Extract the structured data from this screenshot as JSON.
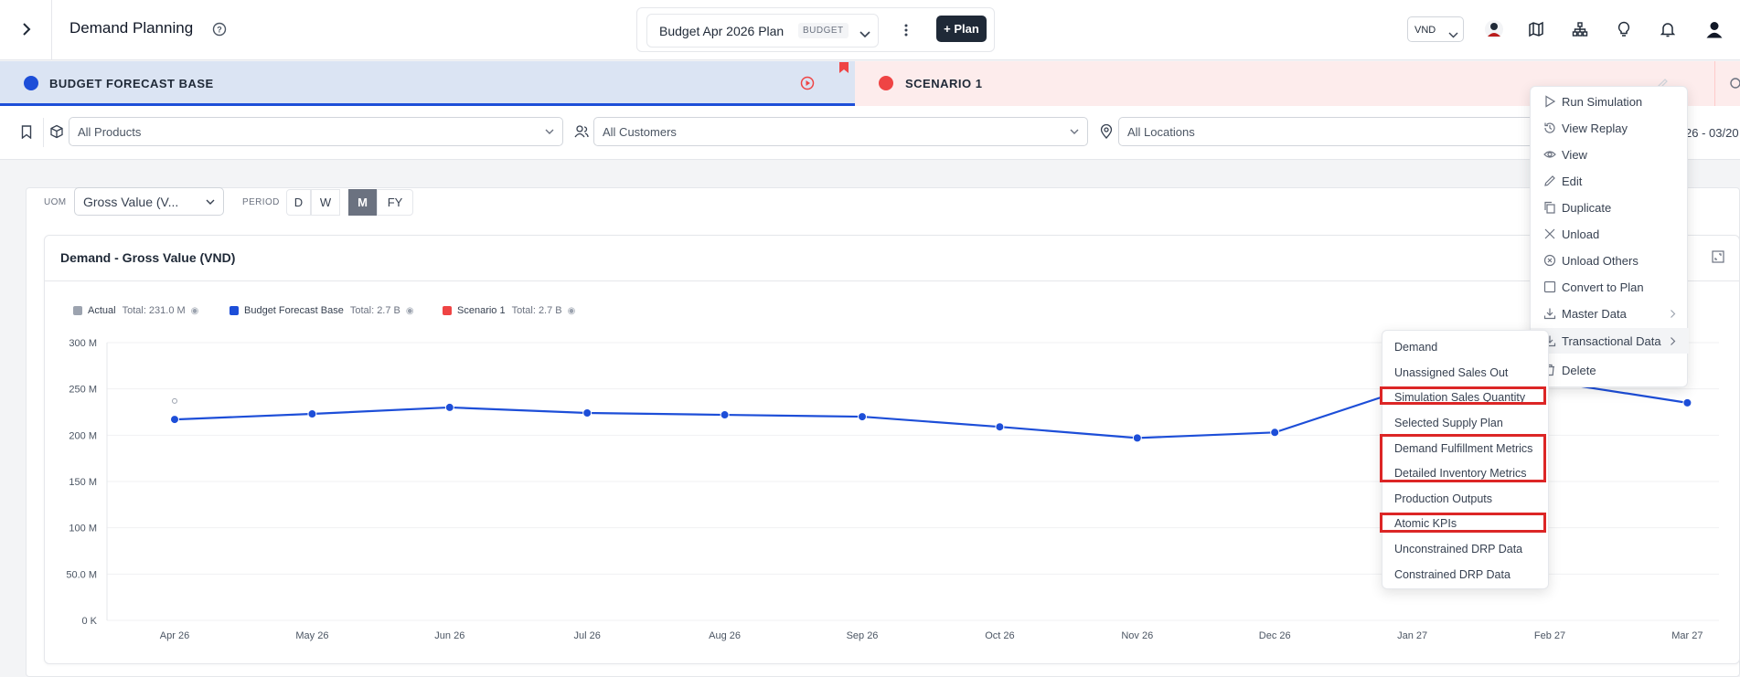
{
  "app": {
    "title": "Demand Planning",
    "plan_name": "Budget Apr 2026 Plan",
    "plan_badge": "BUDGET",
    "add_plan_label": "+ Plan",
    "currency": "VND"
  },
  "tabs": {
    "base_label": "BUDGET FORECAST BASE",
    "scenario_label": "SCENARIO 1",
    "base_color": "#1d4ed8",
    "scenario_color": "#ef4444"
  },
  "filters": {
    "products": "All Products",
    "customers": "All Customers",
    "locations": "All Locations",
    "date_range": "26 - 03/20"
  },
  "controls": {
    "uom_label": "UOM",
    "uom_value": "Gross Value (V...",
    "period_label": "PERIOD",
    "periods": [
      "D",
      "W",
      "M",
      "FY"
    ],
    "active_period": "M"
  },
  "chart_card": {
    "title": "Demand - Gross Value (VND)"
  },
  "legend": [
    {
      "name": "Actual",
      "total": "Total: 231.0 M",
      "color": "#9ca3af"
    },
    {
      "name": "Budget Forecast Base",
      "total": "Total: 2.7 B",
      "color": "#1d4ed8"
    },
    {
      "name": "Scenario 1",
      "total": "Total: 2.7 B",
      "color": "#ef4444"
    }
  ],
  "chart_data": {
    "type": "line",
    "categories": [
      "Apr 26",
      "May 26",
      "Jun 26",
      "Jul 26",
      "Aug 26",
      "Sep 26",
      "Oct 26",
      "Nov 26",
      "Dec 26",
      "Jan 27",
      "Feb 27",
      "Mar 27"
    ],
    "y_tick_labels": [
      "0 K",
      "50.0 M",
      "100 M",
      "150 M",
      "200 M",
      "250 M",
      "300 M"
    ],
    "ylim": [
      0,
      300
    ],
    "y_unit": "M",
    "grid": true,
    "series": [
      {
        "name": "Actual",
        "values": [
          231,
          null,
          null,
          null,
          null,
          null,
          null,
          null,
          null,
          null,
          null,
          null
        ],
        "color": "#9ca3af"
      },
      {
        "name": "Budget Forecast Base",
        "values": [
          217,
          223,
          230,
          224,
          222,
          220,
          209,
          197,
          203,
          252,
          258,
          235
        ],
        "color": "#1d4ed8"
      }
    ]
  },
  "context_menu": {
    "items": [
      {
        "label": "Run Simulation",
        "icon": "play-icon"
      },
      {
        "label": "View Replay",
        "icon": "history-icon"
      },
      {
        "label": "View",
        "icon": "eye-icon"
      },
      {
        "label": "Edit",
        "icon": "pencil-icon"
      },
      {
        "label": "Duplicate",
        "icon": "copy-icon"
      },
      {
        "label": "Unload",
        "icon": "x-icon"
      },
      {
        "label": "Unload Others",
        "icon": "circle-x-icon"
      },
      {
        "label": "Convert to Plan",
        "icon": "square-icon"
      },
      {
        "label": "Master Data",
        "icon": "download-icon"
      },
      {
        "label": "Transactional Data",
        "icon": "download-icon"
      },
      {
        "label": "Delete",
        "icon": "trash-icon"
      }
    ]
  },
  "submenu": {
    "items": [
      "Demand",
      "Unassigned Sales Out",
      "Simulation Sales Quantity",
      "Selected Supply Plan",
      "Demand Fulfillment Metrics",
      "Detailed Inventory Metrics",
      "Production Outputs",
      "Atomic KPIs",
      "Unconstrained DRP Data",
      "Constrained DRP Data"
    ]
  }
}
